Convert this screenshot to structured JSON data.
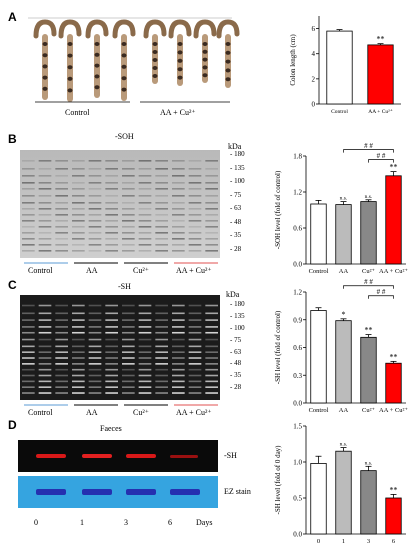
{
  "panels": {
    "A": {
      "letter": "A",
      "groups": [
        "Control",
        "AA + Cu²⁺"
      ],
      "chart": {
        "ylabel": "Colon length (cm)",
        "categories": [
          "Control",
          "AA + Cu²⁺"
        ],
        "values": [
          5.8,
          4.7
        ],
        "errors": [
          0.12,
          0.1
        ],
        "ylim": [
          0,
          7
        ],
        "yticks": [
          0,
          2,
          4,
          6
        ],
        "colors": [
          "#ffffff",
          "#ff0000"
        ],
        "sig": [
          "",
          "**"
        ]
      }
    },
    "B": {
      "letter": "B",
      "blot_title": "-SOH",
      "kda_label": "kDa",
      "markers": [
        "180",
        "135",
        "100",
        "75",
        "63",
        "48",
        "35",
        "28"
      ],
      "groups": [
        "Control",
        "AA",
        "Cu²⁺",
        "AA + Cu²⁺"
      ],
      "chart": {
        "ylabel": "-SOH level (fold of control)",
        "categories": [
          "Control",
          "AA",
          "Cu²⁺",
          "AA + Cu²⁺"
        ],
        "values": [
          1.0,
          0.99,
          1.04,
          1.47
        ],
        "errors": [
          0.06,
          0.05,
          0.03,
          0.07
        ],
        "ylim": [
          0,
          1.8
        ],
        "yticks": [
          0.0,
          0.6,
          1.2,
          1.8
        ],
        "colors": [
          "#ffffff",
          "#bbbbbb",
          "#888888",
          "#ff0000"
        ],
        "sig": [
          "",
          "n.s.",
          "n.s.",
          "**"
        ],
        "brackets": [
          "# #",
          "# #"
        ]
      }
    },
    "C": {
      "letter": "C",
      "blot_title": "-SH",
      "kda_label": "kDa",
      "markers": [
        "180",
        "135",
        "100",
        "75",
        "63",
        "48",
        "35",
        "28"
      ],
      "groups": [
        "Control",
        "AA",
        "Cu²⁺",
        "AA + Cu²⁺"
      ],
      "chart": {
        "ylabel": "-SH level (fold of control)",
        "categories": [
          "Control",
          "AA",
          "Cu²⁺",
          "AA + Cu²⁺"
        ],
        "values": [
          1.0,
          0.89,
          0.71,
          0.43
        ],
        "errors": [
          0.03,
          0.02,
          0.03,
          0.02
        ],
        "ylim": [
          0,
          1.2
        ],
        "yticks": [
          0.0,
          0.3,
          0.6,
          0.9,
          1.2
        ],
        "colors": [
          "#ffffff",
          "#bbbbbb",
          "#888888",
          "#ff0000"
        ],
        "sig": [
          "",
          "*",
          "**",
          "**"
        ],
        "brackets": [
          "# #",
          "# #"
        ]
      }
    },
    "D": {
      "letter": "D",
      "blot_title": "Faeces",
      "row_labels": [
        "-SH",
        "EZ stain"
      ],
      "days": [
        "0",
        "1",
        "3",
        "6"
      ],
      "days_label": "Days",
      "chart": {
        "ylabel": "-SH level (fold of 0 day)",
        "categories": [
          "0",
          "1",
          "3",
          "6"
        ],
        "values": [
          0.98,
          1.15,
          0.88,
          0.5
        ],
        "errors": [
          0.1,
          0.05,
          0.06,
          0.05
        ],
        "ylim": [
          0,
          1.5
        ],
        "yticks": [
          0.0,
          0.5,
          1.0,
          1.5
        ],
        "colors": [
          "#ffffff",
          "#bbbbbb",
          "#888888",
          "#ff0000"
        ],
        "sig": [
          "",
          "n.s.",
          "n.s.",
          "**"
        ]
      }
    }
  }
}
